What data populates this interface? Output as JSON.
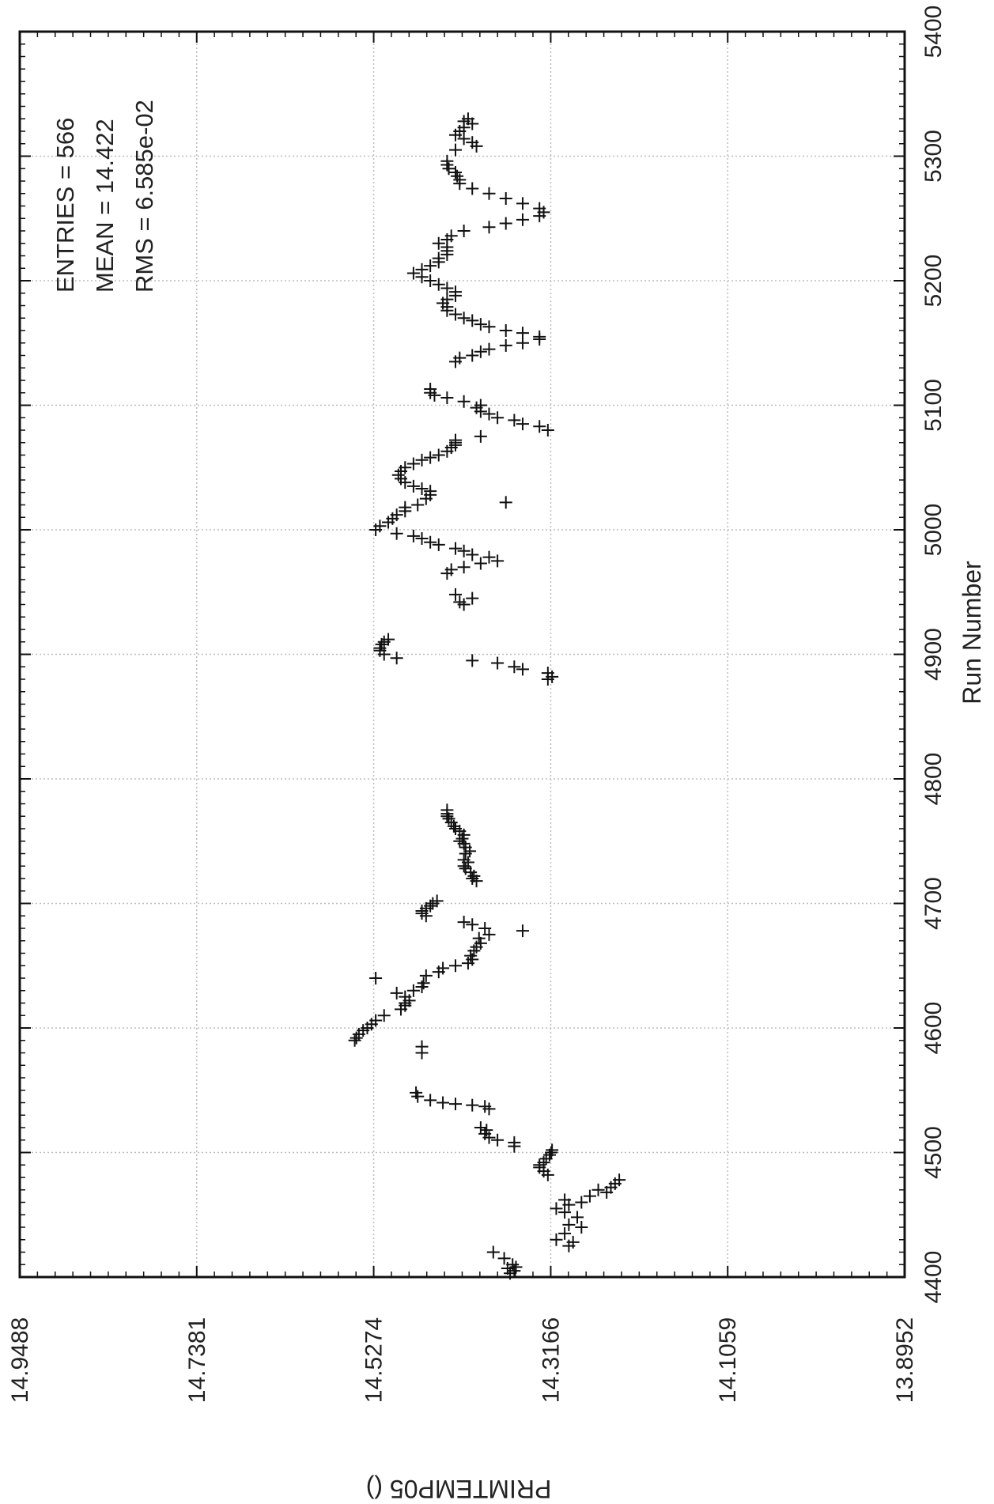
{
  "chart_data": {
    "type": "scatter",
    "orientation": "rotated-90-clockwise",
    "title": "",
    "xlabel": "Run Number",
    "ylabel": "PRIMTEMP05 ()",
    "xlim": [
      4400,
      5400
    ],
    "ylim": [
      13.8952,
      14.9488
    ],
    "x_ticks": [
      "4400",
      "4500",
      "4600",
      "4700",
      "4800",
      "4900",
      "5000",
      "5100",
      "5200",
      "5300",
      "5400"
    ],
    "y_ticks": [
      "14.9488",
      "14.7381",
      "14.5274",
      "14.3166",
      "14.1059",
      "13.8952"
    ],
    "grid": true,
    "marker": "+",
    "marker_color": "#111111",
    "stats": {
      "entries": "ENTRIES = 566",
      "mean": "MEAN = 14.422",
      "rms": "RMS = 6.585e-02"
    },
    "series": [
      {
        "points": [
          [
            4403,
            14.365
          ],
          [
            4405,
            14.36
          ],
          [
            4407,
            14.368
          ],
          [
            4410,
            14.362
          ],
          [
            4408,
            14.358
          ],
          [
            4415,
            14.372
          ],
          [
            4420,
            14.385
          ],
          [
            4425,
            14.295
          ],
          [
            4428,
            14.29
          ],
          [
            4430,
            14.31
          ],
          [
            4435,
            14.3
          ],
          [
            4440,
            14.28
          ],
          [
            4442,
            14.295
          ],
          [
            4448,
            14.285
          ],
          [
            4452,
            14.3
          ],
          [
            4455,
            14.31
          ],
          [
            4458,
            14.295
          ],
          [
            4460,
            14.28
          ],
          [
            4462,
            14.3
          ],
          [
            4465,
            14.27
          ],
          [
            4468,
            14.25
          ],
          [
            4470,
            14.26
          ],
          [
            4472,
            14.245
          ],
          [
            4475,
            14.24
          ],
          [
            4478,
            14.235
          ],
          [
            4482,
            14.32
          ],
          [
            4485,
            14.325
          ],
          [
            4488,
            14.33
          ],
          [
            4490,
            14.33
          ],
          [
            4492,
            14.325
          ],
          [
            4495,
            14.322
          ],
          [
            4498,
            14.318
          ],
          [
            4500,
            14.316
          ],
          [
            4502,
            14.315
          ],
          [
            4505,
            14.36
          ],
          [
            4508,
            14.36
          ],
          [
            4510,
            14.38
          ],
          [
            4512,
            14.39
          ],
          [
            4515,
            14.395
          ],
          [
            4518,
            14.393
          ],
          [
            4520,
            14.4
          ],
          [
            4535,
            14.39
          ],
          [
            4537,
            14.395
          ],
          [
            4538,
            14.41
          ],
          [
            4539,
            14.43
          ],
          [
            4540,
            14.445
          ],
          [
            4542,
            14.46
          ],
          [
            4545,
            14.475
          ],
          [
            4548,
            14.477
          ],
          [
            4580,
            14.47
          ],
          [
            4585,
            14.47
          ],
          [
            4590,
            14.55
          ],
          [
            4592,
            14.548
          ],
          [
            4595,
            14.545
          ],
          [
            4598,
            14.54
          ],
          [
            4600,
            14.535
          ],
          [
            4603,
            14.53
          ],
          [
            4606,
            14.525
          ],
          [
            4610,
            14.515
          ],
          [
            4615,
            14.495
          ],
          [
            4618,
            14.49
          ],
          [
            4620,
            14.49
          ],
          [
            4622,
            14.485
          ],
          [
            4625,
            14.49
          ],
          [
            4628,
            14.5
          ],
          [
            4630,
            14.48
          ],
          [
            4633,
            14.47
          ],
          [
            4636,
            14.468
          ],
          [
            4640,
            14.525
          ],
          [
            4642,
            14.465
          ],
          [
            4645,
            14.45
          ],
          [
            4648,
            14.445
          ],
          [
            4650,
            14.43
          ],
          [
            4652,
            14.415
          ],
          [
            4655,
            14.41
          ],
          [
            4658,
            14.412
          ],
          [
            4662,
            14.408
          ],
          [
            4665,
            14.405
          ],
          [
            4668,
            14.4
          ],
          [
            4672,
            14.402
          ],
          [
            4675,
            14.39
          ],
          [
            4678,
            14.35
          ],
          [
            4680,
            14.395
          ],
          [
            4683,
            14.41
          ],
          [
            4685,
            14.42
          ],
          [
            4690,
            14.465
          ],
          [
            4692,
            14.47
          ],
          [
            4694,
            14.47
          ],
          [
            4696,
            14.465
          ],
          [
            4698,
            14.46
          ],
          [
            4700,
            14.457
          ],
          [
            4702,
            14.452
          ],
          [
            4718,
            14.405
          ],
          [
            4720,
            14.41
          ],
          [
            4722,
            14.408
          ],
          [
            4725,
            14.412
          ],
          [
            4728,
            14.418
          ],
          [
            4730,
            14.42
          ],
          [
            4733,
            14.415
          ],
          [
            4735,
            14.42
          ],
          [
            4740,
            14.418
          ],
          [
            4742,
            14.413
          ],
          [
            4745,
            14.418
          ],
          [
            4748,
            14.42
          ],
          [
            4750,
            14.425
          ],
          [
            4752,
            14.422
          ],
          [
            4755,
            14.42
          ],
          [
            4758,
            14.425
          ],
          [
            4760,
            14.43
          ],
          [
            4762,
            14.432
          ],
          [
            4765,
            14.435
          ],
          [
            4768,
            14.438
          ],
          [
            4770,
            14.44
          ],
          [
            4772,
            14.44
          ],
          [
            4775,
            14.44
          ],
          [
            4880,
            14.32
          ],
          [
            4882,
            14.315
          ],
          [
            4885,
            14.32
          ],
          [
            4888,
            14.35
          ],
          [
            4890,
            14.36
          ],
          [
            4893,
            14.38
          ],
          [
            4895,
            14.41
          ],
          [
            4897,
            14.5
          ],
          [
            4900,
            14.515
          ],
          [
            4903,
            14.52
          ],
          [
            4905,
            14.52
          ],
          [
            4908,
            14.518
          ],
          [
            4910,
            14.515
          ],
          [
            4912,
            14.51
          ],
          [
            4940,
            14.42
          ],
          [
            4942,
            14.425
          ],
          [
            4945,
            14.41
          ],
          [
            4948,
            14.43
          ],
          [
            4965,
            14.44
          ],
          [
            4968,
            14.435
          ],
          [
            4970,
            14.42
          ],
          [
            4973,
            14.4
          ],
          [
            4975,
            14.38
          ],
          [
            4978,
            14.39
          ],
          [
            4980,
            14.41
          ],
          [
            4983,
            14.42
          ],
          [
            4985,
            14.43
          ],
          [
            4988,
            14.45
          ],
          [
            4990,
            14.46
          ],
          [
            4993,
            14.47
          ],
          [
            4995,
            14.48
          ],
          [
            4997,
            14.5
          ],
          [
            5000,
            14.525
          ],
          [
            5003,
            14.52
          ],
          [
            5006,
            14.51
          ],
          [
            5009,
            14.505
          ],
          [
            5012,
            14.5
          ],
          [
            5015,
            14.49
          ],
          [
            5018,
            14.49
          ],
          [
            5020,
            14.475
          ],
          [
            5022,
            14.37
          ],
          [
            5025,
            14.465
          ],
          [
            5028,
            14.46
          ],
          [
            5031,
            14.46
          ],
          [
            5033,
            14.47
          ],
          [
            5035,
            14.48
          ],
          [
            5038,
            14.49
          ],
          [
            5041,
            14.495
          ],
          [
            5044,
            14.498
          ],
          [
            5047,
            14.495
          ],
          [
            5050,
            14.49
          ],
          [
            5053,
            14.48
          ],
          [
            5056,
            14.47
          ],
          [
            5058,
            14.46
          ],
          [
            5060,
            14.45
          ],
          [
            5063,
            14.44
          ],
          [
            5066,
            14.435
          ],
          [
            5068,
            14.43
          ],
          [
            5070,
            14.43
          ],
          [
            5072,
            14.43
          ],
          [
            5075,
            14.4
          ],
          [
            5080,
            14.32
          ],
          [
            5083,
            14.33
          ],
          [
            5085,
            14.35
          ],
          [
            5088,
            14.36
          ],
          [
            5090,
            14.38
          ],
          [
            5093,
            14.39
          ],
          [
            5095,
            14.4
          ],
          [
            5098,
            14.405
          ],
          [
            5100,
            14.4
          ],
          [
            5103,
            14.42
          ],
          [
            5106,
            14.44
          ],
          [
            5108,
            14.455
          ],
          [
            5110,
            14.46
          ],
          [
            5113,
            14.46
          ],
          [
            5135,
            14.43
          ],
          [
            5138,
            14.425
          ],
          [
            5140,
            14.41
          ],
          [
            5143,
            14.4
          ],
          [
            5145,
            14.39
          ],
          [
            5148,
            14.37
          ],
          [
            5150,
            14.35
          ],
          [
            5153,
            14.33
          ],
          [
            5155,
            14.33
          ],
          [
            5158,
            14.35
          ],
          [
            5160,
            14.37
          ],
          [
            5163,
            14.39
          ],
          [
            5165,
            14.4
          ],
          [
            5168,
            14.41
          ],
          [
            5170,
            14.42
          ],
          [
            5173,
            14.43
          ],
          [
            5176,
            14.44
          ],
          [
            5179,
            14.44
          ],
          [
            5182,
            14.445
          ],
          [
            5185,
            14.44
          ],
          [
            5188,
            14.43
          ],
          [
            5191,
            14.43
          ],
          [
            5194,
            14.44
          ],
          [
            5197,
            14.45
          ],
          [
            5200,
            14.46
          ],
          [
            5203,
            14.47
          ],
          [
            5206,
            14.48
          ],
          [
            5209,
            14.47
          ],
          [
            5212,
            14.46
          ],
          [
            5215,
            14.45
          ],
          [
            5218,
            14.45
          ],
          [
            5221,
            14.44
          ],
          [
            5224,
            14.44
          ],
          [
            5227,
            14.44
          ],
          [
            5230,
            14.45
          ],
          [
            5233,
            14.44
          ],
          [
            5236,
            14.435
          ],
          [
            5240,
            14.42
          ],
          [
            5243,
            14.39
          ],
          [
            5246,
            14.37
          ],
          [
            5249,
            14.35
          ],
          [
            5252,
            14.33
          ],
          [
            5255,
            14.325
          ],
          [
            5258,
            14.33
          ],
          [
            5262,
            14.35
          ],
          [
            5266,
            14.37
          ],
          [
            5270,
            14.39
          ],
          [
            5274,
            14.41
          ],
          [
            5278,
            14.425
          ],
          [
            5281,
            14.425
          ],
          [
            5284,
            14.428
          ],
          [
            5287,
            14.43
          ],
          [
            5290,
            14.438
          ],
          [
            5293,
            14.44
          ],
          [
            5296,
            14.44
          ],
          [
            5305,
            14.43
          ],
          [
            5308,
            14.405
          ],
          [
            5311,
            14.41
          ],
          [
            5314,
            14.42
          ],
          [
            5317,
            14.43
          ],
          [
            5320,
            14.425
          ],
          [
            5323,
            14.42
          ],
          [
            5326,
            14.41
          ],
          [
            5328,
            14.42
          ],
          [
            5330,
            14.415
          ]
        ]
      }
    ]
  }
}
